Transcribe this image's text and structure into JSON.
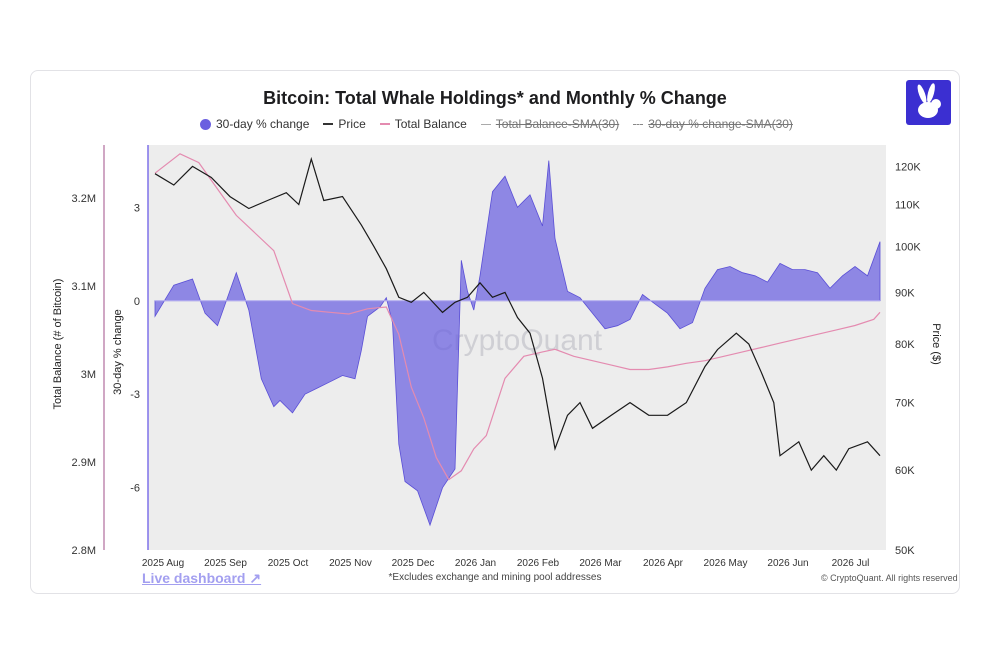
{
  "header": {
    "title": "Bitcoin: Total Whale Holdings* and Monthly % Change"
  },
  "legend": [
    {
      "label": "30-day % change",
      "style": "dot",
      "active": true
    },
    {
      "label": "Price",
      "style": "line-black",
      "active": true
    },
    {
      "label": "Total Balance",
      "style": "line-pink",
      "active": true
    },
    {
      "label": "Total Balance-SMA(30)",
      "style": "line-grey",
      "active": false
    },
    {
      "label": "30-day % change-SMA(30)",
      "style": "line-dashed",
      "active": false
    }
  ],
  "footer": {
    "note": "*Excludes exchange and mining pool addresses",
    "copyright": "© CryptoQuant. All rights reserved",
    "link": "Live dashboard ↗"
  },
  "watermark": "CryptoQuant",
  "colors": {
    "change_fill": "#6a5fe0",
    "price": "#1a1a1a",
    "balance": "#e48bb0",
    "accent": "#3b2fd1"
  },
  "logo": {
    "icon": "rabbit-icon"
  },
  "chart_data": {
    "type": "line",
    "x_label_months": [
      "2025 Aug",
      "2025 Sep",
      "2025 Oct",
      "2025 Nov",
      "2025 Dec",
      "2026 Jan",
      "2026 Feb",
      "2026 Mar",
      "2026 Apr",
      "2026 May",
      "2026 Jun",
      "2026 Jul"
    ],
    "axes": {
      "balance": {
        "title": "Total Balance (# of Bitcoin)",
        "ticks": [
          "3.2M",
          "3.1M",
          "3M",
          "2.9M",
          "2.8M"
        ],
        "tick_values": [
          3200000,
          3100000,
          3000000,
          2900000,
          2800000
        ],
        "range": [
          2800000,
          3260000
        ]
      },
      "change": {
        "title": "30-day % change",
        "ticks": [
          "3",
          "0",
          "-3",
          "-6"
        ],
        "tick_values": [
          3,
          0,
          -3,
          -6
        ],
        "range": [
          -8,
          5
        ]
      },
      "price": {
        "title": "Price ($)",
        "ticks": [
          "120K",
          "110K",
          "100K",
          "90K",
          "80K",
          "70K",
          "60K",
          "50K"
        ],
        "tick_values": [
          120000,
          110000,
          100000,
          90000,
          80000,
          70000,
          60000,
          50000
        ],
        "scale": "log",
        "range": [
          50000,
          126000
        ]
      }
    },
    "series": [
      {
        "name": "30-day % change",
        "axis": "change",
        "style": "area",
        "points": [
          [
            0,
            -0.5
          ],
          [
            0.3,
            0.5
          ],
          [
            0.6,
            0.7
          ],
          [
            0.8,
            -0.4
          ],
          [
            1.0,
            -0.8
          ],
          [
            1.3,
            0.9
          ],
          [
            1.5,
            -0.3
          ],
          [
            1.7,
            -2.5
          ],
          [
            1.9,
            -3.4
          ],
          [
            2.0,
            -3.2
          ],
          [
            2.2,
            -3.6
          ],
          [
            2.4,
            -3.0
          ],
          [
            2.6,
            -2.8
          ],
          [
            2.8,
            -2.6
          ],
          [
            3.0,
            -2.4
          ],
          [
            3.2,
            -2.5
          ],
          [
            3.3,
            -1.6
          ],
          [
            3.4,
            -0.5
          ],
          [
            3.6,
            -0.2
          ],
          [
            3.7,
            0.1
          ],
          [
            3.8,
            -0.7
          ],
          [
            3.9,
            -4.6
          ],
          [
            4.0,
            -5.8
          ],
          [
            4.2,
            -6.1
          ],
          [
            4.4,
            -7.2
          ],
          [
            4.6,
            -6.0
          ],
          [
            4.8,
            -5.4
          ],
          [
            4.9,
            1.3
          ],
          [
            5.0,
            0.3
          ],
          [
            5.1,
            -0.3
          ],
          [
            5.2,
            0.8
          ],
          [
            5.4,
            3.5
          ],
          [
            5.6,
            4.0
          ],
          [
            5.8,
            3.0
          ],
          [
            6.0,
            3.4
          ],
          [
            6.2,
            2.4
          ],
          [
            6.3,
            4.5
          ],
          [
            6.4,
            2.0
          ],
          [
            6.6,
            0.3
          ],
          [
            6.8,
            0.1
          ],
          [
            7.0,
            -0.4
          ],
          [
            7.2,
            -0.9
          ],
          [
            7.4,
            -0.8
          ],
          [
            7.6,
            -0.6
          ],
          [
            7.8,
            0.2
          ],
          [
            8.0,
            -0.1
          ],
          [
            8.2,
            -0.4
          ],
          [
            8.4,
            -0.9
          ],
          [
            8.6,
            -0.7
          ],
          [
            8.8,
            0.4
          ],
          [
            9.0,
            1.0
          ],
          [
            9.2,
            1.1
          ],
          [
            9.4,
            0.9
          ],
          [
            9.6,
            0.8
          ],
          [
            9.8,
            0.6
          ],
          [
            10.0,
            1.2
          ],
          [
            10.2,
            1.0
          ],
          [
            10.4,
            1.0
          ],
          [
            10.6,
            0.9
          ],
          [
            10.8,
            0.4
          ],
          [
            11.0,
            0.8
          ],
          [
            11.2,
            1.1
          ],
          [
            11.4,
            0.8
          ],
          [
            11.6,
            1.9
          ]
        ]
      },
      {
        "name": "Price",
        "axis": "price",
        "style": "line",
        "points": [
          [
            0,
            118000
          ],
          [
            0.3,
            115000
          ],
          [
            0.6,
            120000
          ],
          [
            0.9,
            117000
          ],
          [
            1.2,
            112000
          ],
          [
            1.5,
            109000
          ],
          [
            1.8,
            111000
          ],
          [
            2.1,
            113000
          ],
          [
            2.3,
            110000
          ],
          [
            2.5,
            122000
          ],
          [
            2.7,
            111000
          ],
          [
            3.0,
            112000
          ],
          [
            3.3,
            105000
          ],
          [
            3.5,
            100000
          ],
          [
            3.7,
            95000
          ],
          [
            3.9,
            89000
          ],
          [
            4.1,
            88000
          ],
          [
            4.3,
            90000
          ],
          [
            4.6,
            86000
          ],
          [
            4.8,
            88000
          ],
          [
            5.0,
            89000
          ],
          [
            5.2,
            92000
          ],
          [
            5.4,
            89000
          ],
          [
            5.6,
            90000
          ],
          [
            5.8,
            85000
          ],
          [
            6.0,
            82000
          ],
          [
            6.2,
            74000
          ],
          [
            6.4,
            63000
          ],
          [
            6.6,
            68000
          ],
          [
            6.8,
            70000
          ],
          [
            7.0,
            66000
          ],
          [
            7.3,
            68000
          ],
          [
            7.6,
            70000
          ],
          [
            7.9,
            68000
          ],
          [
            8.2,
            68000
          ],
          [
            8.5,
            70000
          ],
          [
            8.8,
            76000
          ],
          [
            9.0,
            79000
          ],
          [
            9.3,
            82000
          ],
          [
            9.5,
            80000
          ],
          [
            9.7,
            75000
          ],
          [
            9.9,
            70000
          ],
          [
            10.0,
            62000
          ],
          [
            10.3,
            64000
          ],
          [
            10.5,
            60000
          ],
          [
            10.7,
            62000
          ],
          [
            10.9,
            60000
          ],
          [
            11.1,
            63000
          ],
          [
            11.4,
            64000
          ],
          [
            11.6,
            62000
          ]
        ]
      },
      {
        "name": "Total Balance",
        "axis": "balance",
        "style": "line",
        "points": [
          [
            0,
            3228000
          ],
          [
            0.4,
            3250000
          ],
          [
            0.7,
            3240000
          ],
          [
            1.0,
            3210000
          ],
          [
            1.3,
            3180000
          ],
          [
            1.6,
            3160000
          ],
          [
            1.9,
            3140000
          ],
          [
            2.2,
            3080000
          ],
          [
            2.5,
            3072000
          ],
          [
            2.8,
            3070000
          ],
          [
            3.1,
            3068000
          ],
          [
            3.4,
            3074000
          ],
          [
            3.7,
            3076000
          ],
          [
            3.9,
            3045000
          ],
          [
            4.1,
            2985000
          ],
          [
            4.3,
            2950000
          ],
          [
            4.5,
            2905000
          ],
          [
            4.7,
            2880000
          ],
          [
            4.9,
            2890000
          ],
          [
            5.1,
            2915000
          ],
          [
            5.3,
            2930000
          ],
          [
            5.6,
            2995000
          ],
          [
            5.9,
            3020000
          ],
          [
            6.2,
            3025000
          ],
          [
            6.4,
            3028000
          ],
          [
            6.7,
            3020000
          ],
          [
            7.0,
            3015000
          ],
          [
            7.3,
            3010000
          ],
          [
            7.6,
            3005000
          ],
          [
            7.9,
            3005000
          ],
          [
            8.2,
            3008000
          ],
          [
            8.5,
            3012000
          ],
          [
            8.8,
            3015000
          ],
          [
            9.1,
            3020000
          ],
          [
            9.4,
            3025000
          ],
          [
            9.7,
            3030000
          ],
          [
            10.0,
            3035000
          ],
          [
            10.3,
            3040000
          ],
          [
            10.6,
            3045000
          ],
          [
            10.9,
            3050000
          ],
          [
            11.2,
            3055000
          ],
          [
            11.5,
            3062000
          ],
          [
            11.6,
            3070000
          ]
        ]
      }
    ]
  }
}
